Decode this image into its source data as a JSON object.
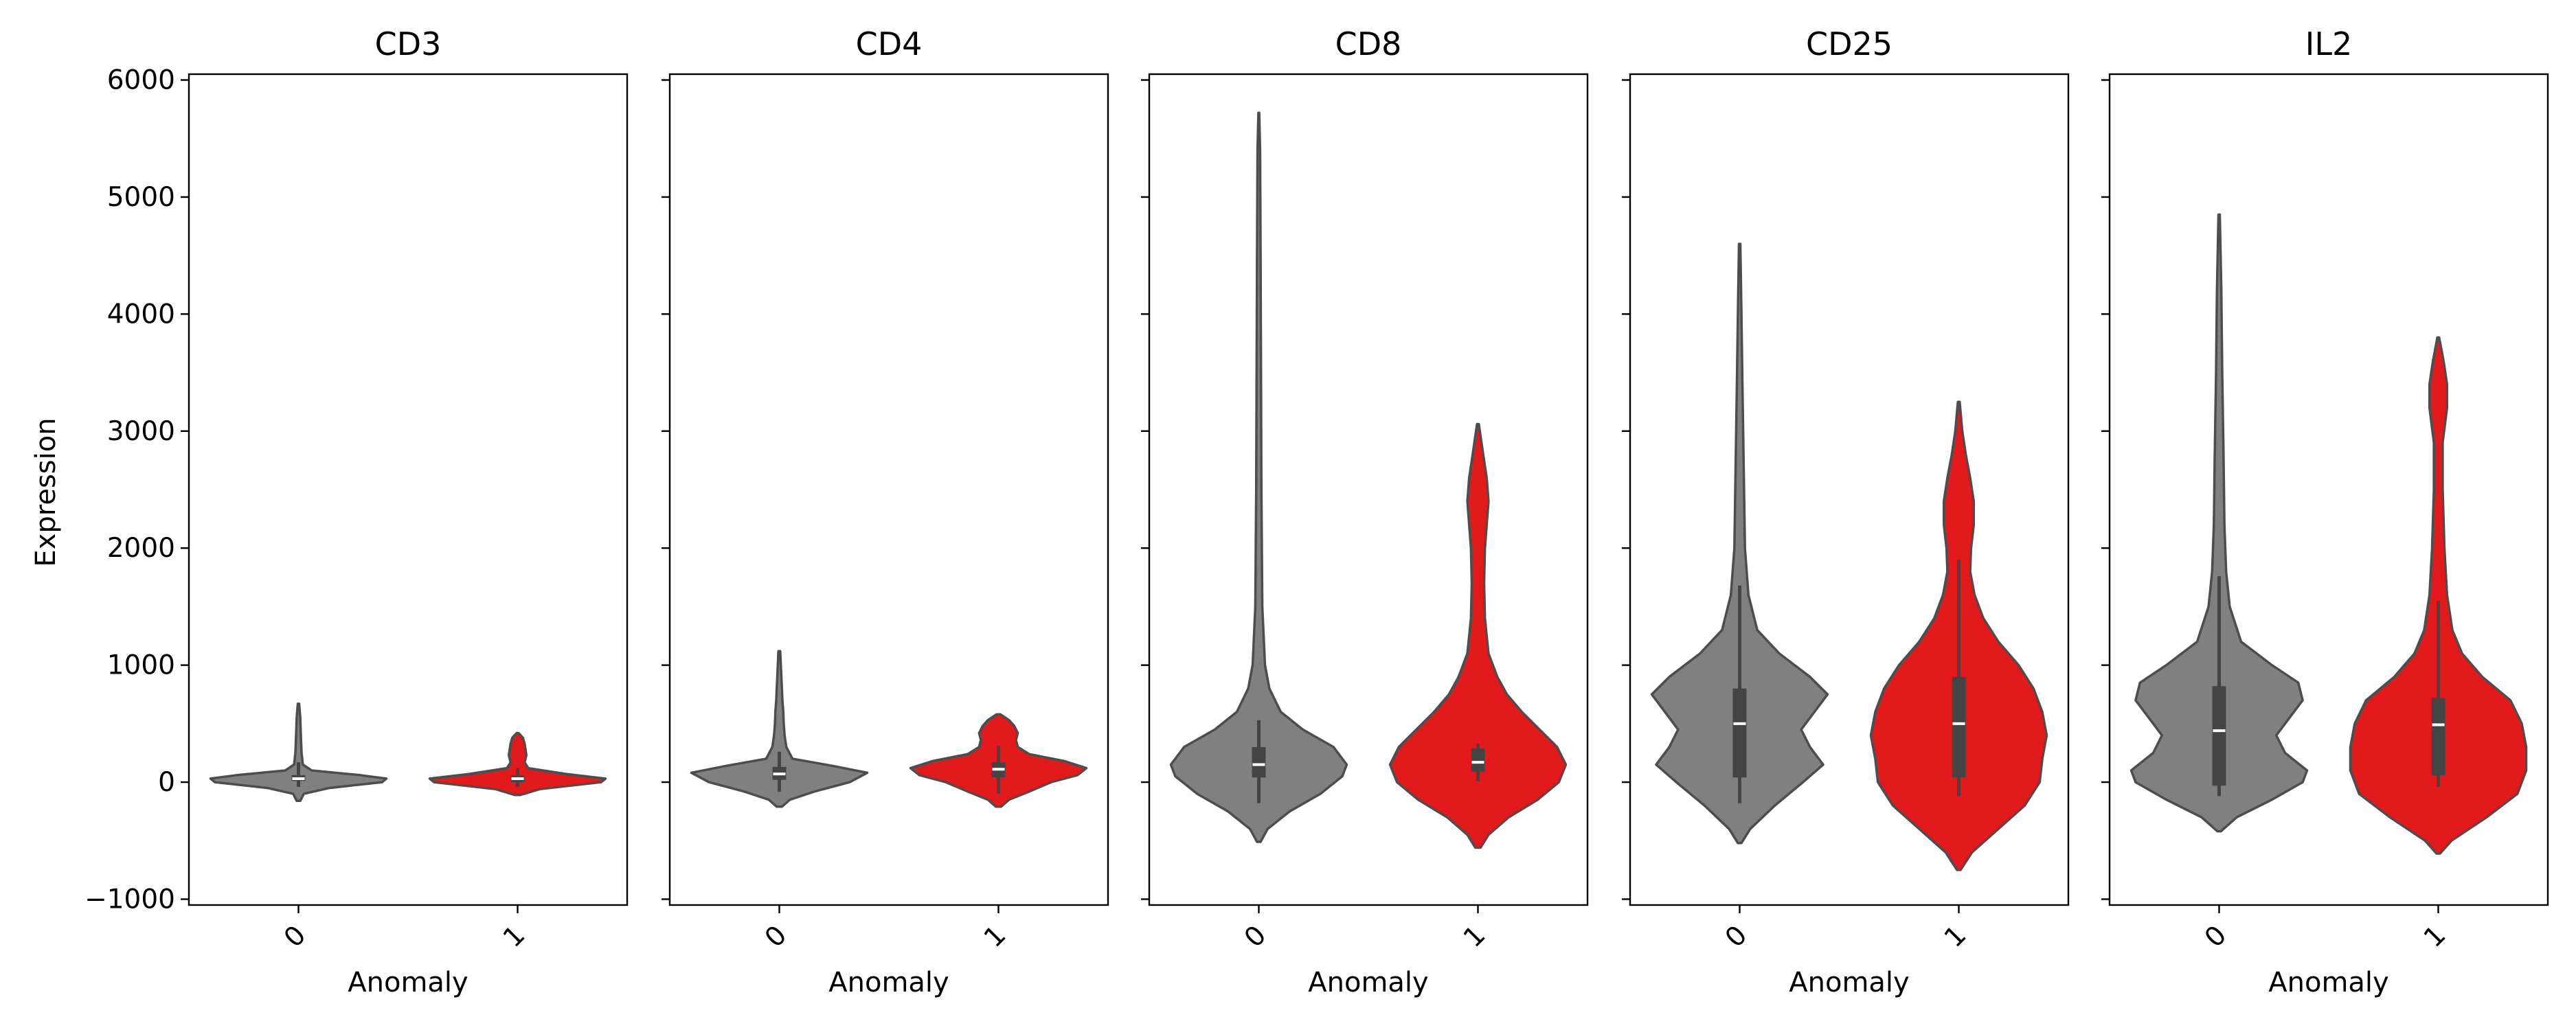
{
  "chart_data": {
    "type": "violin",
    "ylabel": "Expression",
    "xlabel": "Anomaly",
    "ylim": [
      -1050,
      6050
    ],
    "yticks": [
      -1000,
      0,
      1000,
      2000,
      3000,
      4000,
      5000,
      6000
    ],
    "ytick_labels": [
      "−1000",
      "0",
      "1000",
      "2000",
      "3000",
      "4000",
      "5000",
      "6000"
    ],
    "categories": [
      "0",
      "1"
    ],
    "colors": {
      "0": "#808080",
      "1": "#e31a1c",
      "edge": "#4d4d4d",
      "box": "#444444",
      "median": "#ffffff",
      "frame": "#000000"
    },
    "grid": false,
    "panels": [
      {
        "title": "CD3",
        "groups": [
          {
            "anomaly": "0",
            "min": -160,
            "max": 670,
            "q1": 10,
            "median": 30,
            "q3": 60,
            "whisker_low": -40,
            "whisker_high": 170,
            "density": [
              [
                -160,
                0.02
              ],
              [
                -100,
                0.06
              ],
              [
                -50,
                0.35
              ],
              [
                0,
                0.95
              ],
              [
                30,
                1.0
              ],
              [
                60,
                0.7
              ],
              [
                100,
                0.15
              ],
              [
                150,
                0.05
              ],
              [
                250,
                0.035
              ],
              [
                350,
                0.03
              ],
              [
                450,
                0.025
              ],
              [
                550,
                0.02
              ],
              [
                670,
                0.008
              ]
            ]
          },
          {
            "anomaly": "1",
            "min": -110,
            "max": 420,
            "q1": 0,
            "median": 30,
            "q3": 60,
            "whisker_low": -40,
            "whisker_high": 120,
            "density": [
              [
                -110,
                0.03
              ],
              [
                -60,
                0.25
              ],
              [
                0,
                0.95
              ],
              [
                30,
                1.0
              ],
              [
                70,
                0.55
              ],
              [
                120,
                0.12
              ],
              [
                170,
                0.08
              ],
              [
                230,
                0.1
              ],
              [
                280,
                0.09
              ],
              [
                330,
                0.08
              ],
              [
                380,
                0.06
              ],
              [
                420,
                0.01
              ]
            ]
          }
        ]
      },
      {
        "title": "CD4",
        "groups": [
          {
            "anomaly": "0",
            "min": -210,
            "max": 1120,
            "q1": 20,
            "median": 70,
            "q3": 130,
            "whisker_low": -80,
            "whisker_high": 260,
            "density": [
              [
                -210,
                0.03
              ],
              [
                -150,
                0.12
              ],
              [
                -80,
                0.4
              ],
              [
                0,
                0.8
              ],
              [
                80,
                1.0
              ],
              [
                140,
                0.6
              ],
              [
                200,
                0.15
              ],
              [
                300,
                0.08
              ],
              [
                400,
                0.06
              ],
              [
                500,
                0.05
              ],
              [
                600,
                0.045
              ],
              [
                700,
                0.035
              ],
              [
                800,
                0.03
              ],
              [
                950,
                0.02
              ],
              [
                1120,
                0.01
              ]
            ]
          },
          {
            "anomaly": "1",
            "min": -210,
            "max": 580,
            "q1": 40,
            "median": 110,
            "q3": 170,
            "whisker_low": -100,
            "whisker_high": 310,
            "density": [
              [
                -210,
                0.03
              ],
              [
                -150,
                0.12
              ],
              [
                -80,
                0.35
              ],
              [
                0,
                0.6
              ],
              [
                60,
                0.9
              ],
              [
                120,
                1.0
              ],
              [
                180,
                0.75
              ],
              [
                240,
                0.35
              ],
              [
                300,
                0.22
              ],
              [
                360,
                0.2
              ],
              [
                420,
                0.22
              ],
              [
                480,
                0.18
              ],
              [
                530,
                0.12
              ],
              [
                580,
                0.02
              ]
            ]
          }
        ]
      },
      {
        "title": "CD8",
        "groups": [
          {
            "anomaly": "0",
            "min": -510,
            "max": 5720,
            "q1": 40,
            "median": 150,
            "q3": 300,
            "whisker_low": -180,
            "whisker_high": 530,
            "density": [
              [
                -510,
                0.02
              ],
              [
                -400,
                0.1
              ],
              [
                -250,
                0.35
              ],
              [
                -100,
                0.7
              ],
              [
                50,
                0.95
              ],
              [
                150,
                1.0
              ],
              [
                300,
                0.85
              ],
              [
                450,
                0.5
              ],
              [
                600,
                0.25
              ],
              [
                800,
                0.12
              ],
              [
                1000,
                0.07
              ],
              [
                1500,
                0.04
              ],
              [
                2500,
                0.03
              ],
              [
                3500,
                0.025
              ],
              [
                4500,
                0.02
              ],
              [
                5400,
                0.015
              ],
              [
                5720,
                0.005
              ]
            ]
          },
          {
            "anomaly": "1",
            "min": -560,
            "max": 3060,
            "q1": 90,
            "median": 170,
            "q3": 290,
            "whisker_low": 10,
            "whisker_high": 330,
            "density": [
              [
                -560,
                0.03
              ],
              [
                -450,
                0.12
              ],
              [
                -300,
                0.35
              ],
              [
                -150,
                0.68
              ],
              [
                0,
                0.92
              ],
              [
                150,
                1.0
              ],
              [
                300,
                0.9
              ],
              [
                450,
                0.7
              ],
              [
                600,
                0.5
              ],
              [
                750,
                0.33
              ],
              [
                900,
                0.22
              ],
              [
                1100,
                0.12
              ],
              [
                1400,
                0.08
              ],
              [
                1700,
                0.07
              ],
              [
                2000,
                0.08
              ],
              [
                2200,
                0.1
              ],
              [
                2400,
                0.12
              ],
              [
                2600,
                0.1
              ],
              [
                2800,
                0.06
              ],
              [
                3060,
                0.01
              ]
            ]
          }
        ]
      },
      {
        "title": "CD25",
        "groups": [
          {
            "anomaly": "0",
            "min": -520,
            "max": 4600,
            "q1": 40,
            "median": 500,
            "q3": 800,
            "whisker_low": -180,
            "whisker_high": 1680,
            "density": [
              [
                -520,
                0.02
              ],
              [
                -400,
                0.12
              ],
              [
                -200,
                0.4
              ],
              [
                0,
                0.72
              ],
              [
                150,
                0.95
              ],
              [
                300,
                0.8
              ],
              [
                450,
                0.7
              ],
              [
                600,
                0.85
              ],
              [
                750,
                1.0
              ],
              [
                900,
                0.8
              ],
              [
                1100,
                0.45
              ],
              [
                1300,
                0.2
              ],
              [
                1600,
                0.1
              ],
              [
                2000,
                0.06
              ],
              [
                2500,
                0.05
              ],
              [
                3000,
                0.04
              ],
              [
                3500,
                0.03
              ],
              [
                4000,
                0.02
              ],
              [
                4600,
                0.008
              ]
            ]
          },
          {
            "anomaly": "1",
            "min": -750,
            "max": 3250,
            "q1": 40,
            "median": 500,
            "q3": 900,
            "whisker_low": -120,
            "whisker_high": 1900,
            "density": [
              [
                -750,
                0.02
              ],
              [
                -600,
                0.15
              ],
              [
                -400,
                0.45
              ],
              [
                -200,
                0.75
              ],
              [
                0,
                0.92
              ],
              [
                200,
                0.95
              ],
              [
                400,
                1.0
              ],
              [
                600,
                0.95
              ],
              [
                800,
                0.85
              ],
              [
                1000,
                0.68
              ],
              [
                1200,
                0.45
              ],
              [
                1400,
                0.28
              ],
              [
                1600,
                0.18
              ],
              [
                1800,
                0.13
              ],
              [
                2000,
                0.14
              ],
              [
                2200,
                0.17
              ],
              [
                2400,
                0.17
              ],
              [
                2600,
                0.13
              ],
              [
                2800,
                0.08
              ],
              [
                3000,
                0.04
              ],
              [
                3250,
                0.01
              ]
            ]
          }
        ]
      },
      {
        "title": "IL2",
        "groups": [
          {
            "anomaly": "0",
            "min": -420,
            "max": 4850,
            "q1": -30,
            "median": 440,
            "q3": 820,
            "whisker_low": -120,
            "whisker_high": 1760,
            "density": [
              [
                -420,
                0.02
              ],
              [
                -300,
                0.2
              ],
              [
                -150,
                0.6
              ],
              [
                0,
                0.95
              ],
              [
                100,
                1.0
              ],
              [
                250,
                0.75
              ],
              [
                400,
                0.65
              ],
              [
                550,
                0.8
              ],
              [
                700,
                0.95
              ],
              [
                850,
                0.9
              ],
              [
                1000,
                0.6
              ],
              [
                1200,
                0.25
              ],
              [
                1500,
                0.12
              ],
              [
                1800,
                0.08
              ],
              [
                2200,
                0.06
              ],
              [
                2800,
                0.05
              ],
              [
                3500,
                0.035
              ],
              [
                4200,
                0.025
              ],
              [
                4850,
                0.008
              ]
            ]
          },
          {
            "anomaly": "1",
            "min": -610,
            "max": 3800,
            "q1": 60,
            "median": 490,
            "q3": 720,
            "whisker_low": -40,
            "whisker_high": 1550,
            "density": [
              [
                -610,
                0.02
              ],
              [
                -500,
                0.15
              ],
              [
                -300,
                0.55
              ],
              [
                -100,
                0.9
              ],
              [
                100,
                1.0
              ],
              [
                300,
                1.0
              ],
              [
                500,
                0.95
              ],
              [
                700,
                0.82
              ],
              [
                900,
                0.5
              ],
              [
                1100,
                0.27
              ],
              [
                1300,
                0.16
              ],
              [
                1600,
                0.1
              ],
              [
                2000,
                0.07
              ],
              [
                2500,
                0.05
              ],
              [
                2900,
                0.05
              ],
              [
                3200,
                0.1
              ],
              [
                3400,
                0.1
              ],
              [
                3600,
                0.06
              ],
              [
                3800,
                0.01
              ]
            ]
          }
        ]
      }
    ]
  }
}
